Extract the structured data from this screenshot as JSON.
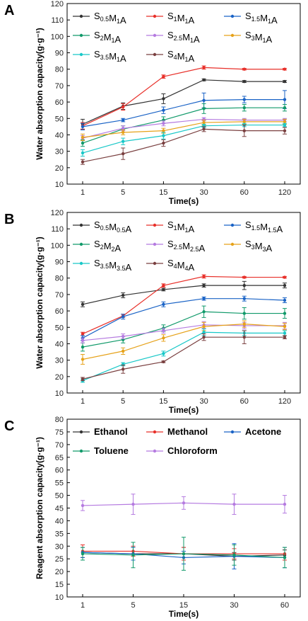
{
  "chart_data": [
    {
      "panel": "A",
      "type": "line",
      "categories": [
        "1",
        "5",
        "15",
        "30",
        "60",
        "120"
      ],
      "xlabel": "Time(s)",
      "ylabel": "Water absorption capacity(g·g⁻¹)",
      "ylim": [
        10,
        120
      ],
      "yticks": [
        10,
        20,
        30,
        40,
        50,
        60,
        70,
        80,
        90,
        100,
        110,
        120
      ],
      "legend": {
        "placement": "top",
        "columns": 3
      },
      "series": [
        {
          "name_parts": [
            [
              "S",
              "0.5"
            ],
            [
              "M",
              "1"
            ],
            [
              "A",
              ""
            ]
          ],
          "color": "#333333",
          "values": [
            46.5,
            57.5,
            62.0,
            73.5,
            72.5,
            72.5
          ],
          "errors": [
            3.0,
            2.0,
            3.0,
            0.6,
            0.6,
            0.6
          ]
        },
        {
          "name_parts": [
            [
              "S",
              "1"
            ],
            [
              "M",
              "1"
            ],
            [
              "A",
              ""
            ]
          ],
          "color": "#e8302a",
          "values": [
            45.5,
            57.0,
            75.5,
            81.0,
            80.0,
            80.0
          ],
          "errors": [
            2.0,
            2.0,
            1.0,
            1.0,
            0.5,
            0.5
          ]
        },
        {
          "name_parts": [
            [
              "S",
              "1.5"
            ],
            [
              "M",
              "1"
            ],
            [
              "A",
              ""
            ]
          ],
          "color": "#1a63c6",
          "values": [
            45.0,
            49.0,
            55.0,
            61.0,
            61.5,
            61.5
          ],
          "errors": [
            2.0,
            1.0,
            2.0,
            4.5,
            2.0,
            5.5
          ]
        },
        {
          "name_parts": [
            [
              "S",
              "2"
            ],
            [
              "M",
              "1"
            ],
            [
              "A",
              ""
            ]
          ],
          "color": "#119a6a",
          "values": [
            35.0,
            43.5,
            49.0,
            56.0,
            56.5,
            56.5
          ],
          "errors": [
            2.0,
            2.0,
            2.0,
            3.0,
            2.0,
            2.0
          ]
        },
        {
          "name_parts": [
            [
              "S",
              "2.5"
            ],
            [
              "M",
              "1"
            ],
            [
              "A",
              ""
            ]
          ],
          "color": "#b57be0",
          "values": [
            38.0,
            44.0,
            47.0,
            49.5,
            49.0,
            49.0
          ],
          "errors": [
            1.5,
            1.5,
            1.5,
            1.0,
            1.0,
            1.0
          ]
        },
        {
          "name_parts": [
            [
              "S",
              "3"
            ],
            [
              "M",
              "1"
            ],
            [
              "A",
              ""
            ]
          ],
          "color": "#e6a21a",
          "values": [
            38.5,
            41.5,
            42.5,
            47.5,
            48.0,
            48.0
          ],
          "errors": [
            2.0,
            1.5,
            1.5,
            1.5,
            1.5,
            1.5
          ]
        },
        {
          "name_parts": [
            [
              "S",
              "3.5"
            ],
            [
              "M",
              "1"
            ],
            [
              "A",
              ""
            ]
          ],
          "color": "#19c8c8",
          "values": [
            29.0,
            36.0,
            39.5,
            45.5,
            46.0,
            46.0
          ],
          "errors": [
            2.0,
            2.0,
            2.0,
            1.0,
            1.0,
            1.0
          ]
        },
        {
          "name_parts": [
            [
              "S",
              "4"
            ],
            [
              "M",
              "1"
            ],
            [
              "A",
              ""
            ]
          ],
          "color": "#7a4040",
          "values": [
            23.5,
            28.5,
            35.0,
            43.5,
            42.5,
            42.5
          ],
          "errors": [
            1.5,
            3.5,
            2.0,
            1.5,
            3.5,
            2.0
          ]
        }
      ]
    },
    {
      "panel": "B",
      "type": "line",
      "categories": [
        "1",
        "5",
        "15",
        "30",
        "60",
        "120"
      ],
      "xlabel": "Time(s)",
      "ylabel": "Water absorption capacity(g·g⁻¹)",
      "ylim": [
        10,
        120
      ],
      "yticks": [
        10,
        20,
        30,
        40,
        50,
        60,
        70,
        80,
        90,
        100,
        110,
        120
      ],
      "legend": {
        "placement": "top",
        "columns": 3
      },
      "series": [
        {
          "name_parts": [
            [
              "S",
              "0.5"
            ],
            [
              "M",
              "0.5"
            ],
            [
              "A",
              ""
            ]
          ],
          "color": "#333333",
          "values": [
            64.0,
            69.5,
            73.0,
            75.5,
            75.5,
            75.5
          ],
          "errors": [
            1.5,
            1.5,
            0.8,
            1.0,
            2.5,
            1.5
          ]
        },
        {
          "name_parts": [
            [
              "S",
              "1"
            ],
            [
              "M",
              "1"
            ],
            [
              "A",
              ""
            ]
          ],
          "color": "#e8302a",
          "values": [
            46.0,
            57.0,
            75.5,
            81.0,
            80.5,
            80.5
          ],
          "errors": [
            1.0,
            1.0,
            1.0,
            1.0,
            0.5,
            0.5
          ]
        },
        {
          "name_parts": [
            [
              "S",
              "1.5"
            ],
            [
              "M",
              "1.5"
            ],
            [
              "A",
              ""
            ]
          ],
          "color": "#1a63c6",
          "values": [
            43.5,
            56.5,
            64.0,
            67.5,
            67.5,
            66.5
          ],
          "errors": [
            1.5,
            1.5,
            1.5,
            1.0,
            1.5,
            1.5
          ]
        },
        {
          "name_parts": [
            [
              "S",
              "2"
            ],
            [
              "M",
              "2"
            ],
            [
              "A",
              ""
            ]
          ],
          "color": "#119a6a",
          "values": [
            38.0,
            42.5,
            49.5,
            59.5,
            58.5,
            58.5
          ],
          "errors": [
            2.5,
            2.0,
            2.0,
            3.5,
            3.5,
            3.0
          ]
        },
        {
          "name_parts": [
            [
              "S",
              "2.5"
            ],
            [
              "M",
              "2.5"
            ],
            [
              "A",
              ""
            ]
          ],
          "color": "#b57be0",
          "values": [
            42.0,
            44.5,
            48.0,
            51.5,
            51.0,
            51.0
          ],
          "errors": [
            1.5,
            1.5,
            1.5,
            2.0,
            2.0,
            2.0
          ]
        },
        {
          "name_parts": [
            [
              "S",
              "3"
            ],
            [
              "M",
              "3"
            ],
            [
              "A",
              ""
            ]
          ],
          "color": "#e6a21a",
          "values": [
            30.5,
            35.5,
            43.5,
            50.5,
            52.0,
            50.5
          ],
          "errors": [
            3.0,
            2.0,
            2.0,
            2.5,
            2.0,
            2.0
          ]
        },
        {
          "name_parts": [
            [
              "S",
              "3.5"
            ],
            [
              "M",
              "3.5"
            ],
            [
              "A",
              ""
            ]
          ],
          "color": "#19c8c8",
          "values": [
            17.5,
            27.5,
            34.0,
            47.0,
            46.5,
            46.5
          ],
          "errors": [
            1.0,
            1.0,
            1.5,
            2.0,
            1.5,
            1.5
          ]
        },
        {
          "name_parts": [
            [
              "S",
              "4"
            ],
            [
              "M",
              "4"
            ],
            [
              "A",
              ""
            ]
          ],
          "color": "#7a4040",
          "values": [
            18.5,
            24.5,
            29.0,
            44.0,
            44.0,
            44.0
          ],
          "errors": [
            1.0,
            2.5,
            0.5,
            2.0,
            4.0,
            1.0
          ]
        }
      ]
    },
    {
      "panel": "C",
      "type": "line",
      "categories": [
        "1",
        "5",
        "15",
        "30",
        "60"
      ],
      "xlabel": "Time(s)",
      "ylabel": "Reagent absorption capacity(g·g⁻¹)",
      "ylim": [
        10,
        80
      ],
      "yticks": [
        10,
        15,
        20,
        25,
        30,
        35,
        40,
        45,
        50,
        55,
        60,
        65,
        70,
        75,
        80
      ],
      "legend": {
        "placement": "top",
        "columns": 3
      },
      "series": [
        {
          "name": "Ethanol",
          "color": "#333333",
          "values": [
            27.5,
            27.0,
            27.0,
            26.0,
            26.5
          ],
          "errors": [
            2.0,
            2.5,
            2.5,
            1.5,
            2.0
          ]
        },
        {
          "name": "Methanol",
          "color": "#e8302a",
          "values": [
            28.0,
            28.0,
            27.0,
            27.0,
            27.0
          ],
          "errors": [
            2.5,
            2.0,
            2.5,
            2.0,
            2.5
          ]
        },
        {
          "name": "Acetone",
          "color": "#1a63c6",
          "values": [
            27.5,
            27.0,
            25.5,
            26.0,
            25.5
          ],
          "errors": [
            2.0,
            2.5,
            2.5,
            5.0,
            4.0
          ]
        },
        {
          "name": "Toluene",
          "color": "#119a6a",
          "values": [
            27.0,
            26.5,
            27.0,
            26.5,
            25.5
          ],
          "errors": [
            2.5,
            5.0,
            6.5,
            4.0,
            4.0
          ]
        },
        {
          "name": "Chloroform",
          "color": "#b57be0",
          "values": [
            46.0,
            46.5,
            47.0,
            46.5,
            46.5
          ],
          "errors": [
            2.0,
            4.0,
            2.5,
            4.0,
            3.5
          ]
        }
      ]
    }
  ]
}
